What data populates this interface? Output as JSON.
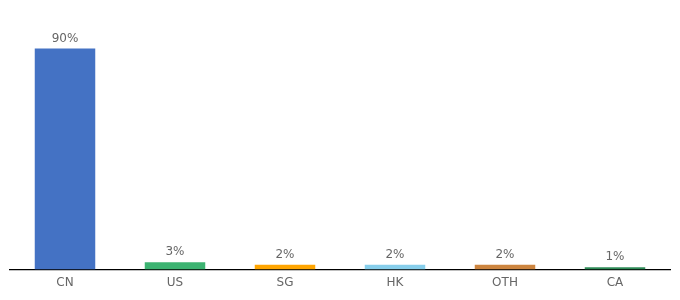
{
  "chart_data": {
    "type": "bar",
    "categories": [
      "CN",
      "US",
      "SG",
      "HK",
      "OTH",
      "CA"
    ],
    "values": [
      90,
      3,
      2,
      2,
      2,
      1
    ],
    "value_labels": [
      "90%",
      "3%",
      "2%",
      "2%",
      "2%",
      "1%"
    ],
    "colors": [
      "#4472C4",
      "#3CB371",
      "#FFA500",
      "#87CEEB",
      "#CD853F",
      "#2E8B57"
    ],
    "ylim": [
      0,
      100
    ],
    "grid": false,
    "data_labels": true,
    "tick_labels": "x"
  }
}
